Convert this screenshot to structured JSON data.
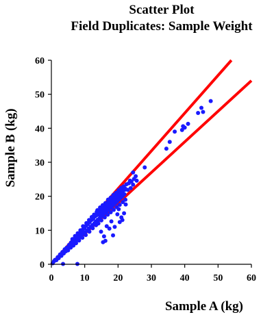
{
  "chart_data": {
    "type": "scatter",
    "title_lines": [
      "Scatter Plot",
      "Field Duplicates: Sample Weight"
    ],
    "xlabel": "Sample A (kg)",
    "ylabel": "Sample B (kg)",
    "xlim": [
      0,
      60
    ],
    "ylim": [
      0,
      60
    ],
    "x_ticks": [
      0,
      10,
      20,
      30,
      40,
      50,
      60
    ],
    "y_ticks": [
      0,
      10,
      20,
      30,
      40,
      50,
      60
    ],
    "grid": false,
    "legend": "none",
    "point_color": "#1a1aff",
    "line_color": "#ff0000",
    "bound_lines": [
      {
        "x": [
          0,
          54
        ],
        "y": [
          0,
          60
        ]
      },
      {
        "x": [
          0,
          60
        ],
        "y": [
          0,
          54
        ]
      }
    ],
    "points": [
      [
        0.4,
        0.3
      ],
      [
        0.8,
        0.9
      ],
      [
        1.1,
        1.3
      ],
      [
        1.5,
        1.2
      ],
      [
        1.9,
        2.1
      ],
      [
        2.2,
        1.8
      ],
      [
        2.6,
        2.9
      ],
      [
        3.0,
        2.5
      ],
      [
        3.3,
        3.6
      ],
      [
        3.7,
        3.2
      ],
      [
        4.0,
        4.4
      ],
      [
        4.3,
        3.8
      ],
      [
        4.6,
        4.9
      ],
      [
        5.0,
        4.6
      ],
      [
        5.3,
        5.7
      ],
      [
        5.6,
        5.1
      ],
      [
        5.9,
        6.4
      ],
      [
        6.2,
        5.8
      ],
      [
        6.5,
        6.9
      ],
      [
        6.8,
        6.3
      ],
      [
        7.0,
        7.6
      ],
      [
        7.3,
        6.8
      ],
      [
        7.6,
        8.1
      ],
      [
        7.9,
        7.2
      ],
      [
        8.2,
        8.9
      ],
      [
        8.5,
        7.9
      ],
      [
        8.8,
        9.4
      ],
      [
        9.0,
        8.5
      ],
      [
        9.3,
        10.1
      ],
      [
        9.6,
        9.0
      ],
      [
        9.9,
        10.6
      ],
      [
        10.1,
        9.4
      ],
      [
        10.4,
        11.3
      ],
      [
        10.7,
        9.9
      ],
      [
        11.0,
        11.8
      ],
      [
        11.2,
        10.5
      ],
      [
        11.5,
        12.4
      ],
      [
        11.8,
        11.0
      ],
      [
        12.0,
        13.0
      ],
      [
        12.3,
        11.5
      ],
      [
        12.6,
        13.6
      ],
      [
        12.9,
        12.0
      ],
      [
        13.1,
        14.1
      ],
      [
        13.4,
        12.6
      ],
      [
        13.7,
        14.7
      ],
      [
        13.9,
        13.1
      ],
      [
        14.2,
        15.3
      ],
      [
        14.5,
        13.6
      ],
      [
        14.7,
        15.8
      ],
      [
        15.0,
        14.1
      ],
      [
        15.3,
        16.4
      ],
      [
        15.5,
        14.6
      ],
      [
        15.8,
        17.0
      ],
      [
        16.1,
        15.1
      ],
      [
        16.3,
        17.5
      ],
      [
        16.6,
        15.6
      ],
      [
        16.9,
        18.1
      ],
      [
        17.1,
        16.1
      ],
      [
        17.4,
        18.6
      ],
      [
        17.7,
        16.6
      ],
      [
        17.9,
        19.2
      ],
      [
        18.2,
        17.1
      ],
      [
        18.5,
        19.7
      ],
      [
        18.7,
        17.6
      ],
      [
        19.0,
        20.3
      ],
      [
        19.3,
        18.1
      ],
      [
        19.5,
        20.8
      ],
      [
        19.8,
        18.6
      ],
      [
        20.1,
        21.4
      ],
      [
        20.3,
        19.1
      ],
      [
        20.6,
        21.9
      ],
      [
        20.9,
        19.6
      ],
      [
        21.1,
        22.4
      ],
      [
        21.4,
        20.1
      ],
      [
        21.7,
        22.9
      ],
      [
        21.9,
        20.6
      ],
      [
        12.5,
        13.3
      ],
      [
        13.0,
        12.1
      ],
      [
        13.5,
        14.4
      ],
      [
        14.0,
        13.0
      ],
      [
        14.5,
        15.1
      ],
      [
        15.0,
        14.8
      ],
      [
        15.5,
        15.7
      ],
      [
        16.0,
        15.4
      ],
      [
        16.5,
        16.9
      ],
      [
        17.0,
        16.8
      ],
      [
        17.5,
        17.6
      ],
      [
        18.0,
        17.9
      ],
      [
        18.5,
        18.3
      ],
      [
        19.0,
        19.1
      ],
      [
        19.5,
        19.8
      ],
      [
        20.0,
        20.2
      ],
      [
        20.5,
        20.4
      ],
      [
        21.0,
        21.1
      ],
      [
        21.5,
        21.6
      ],
      [
        22.0,
        21.9
      ],
      [
        13.8,
        15.9
      ],
      [
        14.6,
        16.7
      ],
      [
        15.4,
        17.4
      ],
      [
        16.2,
        18.0
      ],
      [
        17.0,
        19.0
      ],
      [
        17.8,
        19.6
      ],
      [
        18.6,
        20.4
      ],
      [
        19.4,
        21.0
      ],
      [
        20.2,
        21.8
      ],
      [
        21.0,
        22.5
      ],
      [
        14.1,
        12.0
      ],
      [
        15.0,
        12.9
      ],
      [
        16.0,
        13.8
      ],
      [
        16.9,
        14.6
      ],
      [
        17.8,
        15.3
      ],
      [
        18.7,
        16.0
      ],
      [
        19.6,
        16.8
      ],
      [
        20.5,
        17.5
      ],
      [
        21.4,
        18.3
      ],
      [
        22.2,
        19.0
      ],
      [
        9.5,
        11.2
      ],
      [
        10.5,
        12.1
      ],
      [
        11.3,
        13.0
      ],
      [
        12.1,
        13.9
      ],
      [
        12.8,
        14.6
      ],
      [
        13.6,
        15.4
      ],
      [
        8.7,
        10.0
      ],
      [
        7.9,
        9.1
      ],
      [
        7.1,
        8.3
      ],
      [
        6.3,
        7.4
      ],
      [
        10.3,
        8.6
      ],
      [
        11.4,
        9.6
      ],
      [
        12.4,
        10.6
      ],
      [
        13.4,
        11.5
      ],
      [
        9.3,
        7.8
      ],
      [
        8.3,
        7.0
      ],
      [
        7.4,
        6.2
      ],
      [
        6.6,
        5.5
      ],
      [
        5.8,
        4.9
      ],
      [
        5.0,
        4.1
      ],
      [
        14.9,
        16.0
      ],
      [
        15.6,
        16.2
      ],
      [
        16.4,
        16.1
      ],
      [
        17.2,
        17.0
      ],
      [
        18.1,
        18.4
      ],
      [
        18.9,
        18.8
      ],
      [
        19.8,
        19.3
      ],
      [
        20.6,
        20.9
      ],
      [
        21.3,
        20.8
      ],
      [
        22.1,
        22.3
      ],
      [
        15.2,
        15.5
      ],
      [
        16.8,
        17.3
      ],
      [
        18.3,
        18.1
      ],
      [
        19.9,
        20.0
      ],
      [
        21.2,
        21.3
      ],
      [
        16.1,
        16.6
      ],
      [
        17.6,
        17.2
      ],
      [
        19.1,
        18.9
      ],
      [
        20.4,
        20.6
      ],
      [
        14.4,
        14.6
      ],
      [
        22.5,
        23.5
      ],
      [
        23.2,
        23.8
      ],
      [
        24.0,
        24.3
      ],
      [
        24.8,
        25.1
      ],
      [
        25.3,
        25.9
      ],
      [
        23.6,
        24.6
      ],
      [
        22.9,
        21.9
      ],
      [
        24.5,
        23.4
      ],
      [
        23.8,
        22.4
      ],
      [
        25.6,
        24.6
      ],
      [
        24.5,
        27.0
      ],
      [
        28.0,
        28.5
      ],
      [
        34.5,
        34.0
      ],
      [
        35.5,
        36.0
      ],
      [
        37.0,
        39.0
      ],
      [
        39.2,
        39.5
      ],
      [
        40.0,
        40.2
      ],
      [
        41.0,
        41.3
      ],
      [
        44.0,
        44.5
      ],
      [
        45.5,
        44.8
      ],
      [
        47.8,
        48.0
      ],
      [
        45.0,
        46.0
      ],
      [
        39.5,
        40.6
      ],
      [
        3.5,
        0.1
      ],
      [
        7.8,
        0.1
      ],
      [
        15.5,
        6.5
      ],
      [
        16.2,
        6.9
      ],
      [
        18.5,
        8.5
      ],
      [
        17.4,
        10.5
      ],
      [
        19.0,
        11.0
      ],
      [
        20.5,
        12.4
      ],
      [
        21.3,
        13.0
      ],
      [
        16.6,
        11.2
      ],
      [
        18.0,
        12.6
      ],
      [
        19.8,
        14.7
      ],
      [
        21.8,
        15.0
      ],
      [
        21.0,
        13.8
      ],
      [
        20.2,
        16.2
      ],
      [
        22.3,
        17.6
      ],
      [
        14.9,
        9.6
      ],
      [
        15.8,
        8.2
      ]
    ]
  }
}
